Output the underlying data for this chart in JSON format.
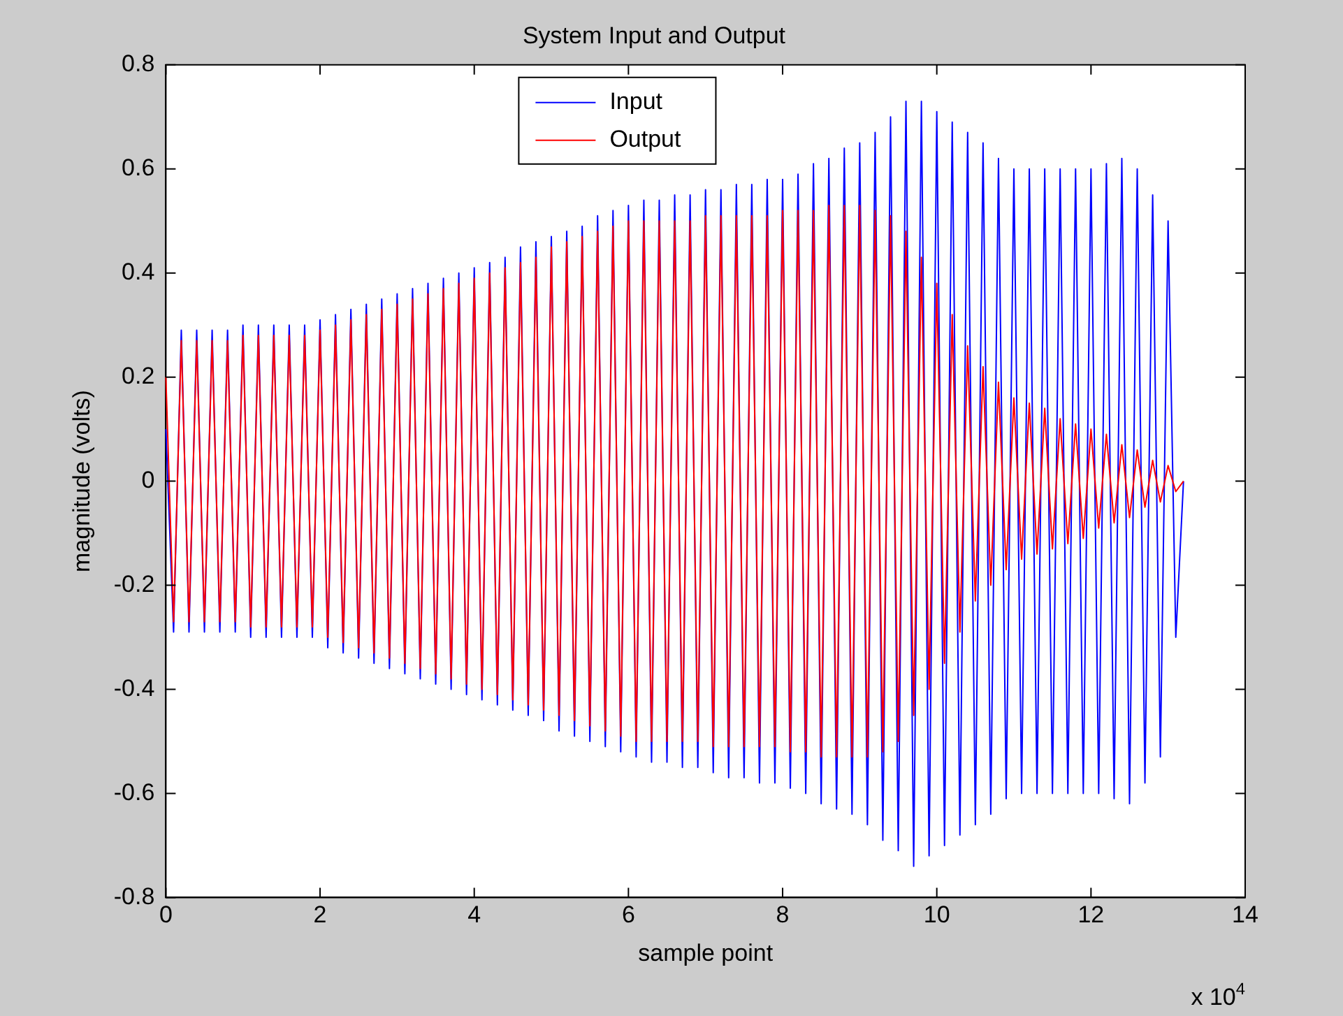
{
  "chart_data": {
    "type": "line",
    "title": "System Input and Output",
    "xlabel": "sample point",
    "ylabel": "magnitude (volts)",
    "annotations": [
      "x 10$^{4}$"
    ],
    "x": [
      0,
      0.1,
      0.2,
      0.3,
      0.4,
      0.5,
      0.6,
      0.7,
      0.8,
      0.9,
      1,
      1.1,
      1.2,
      1.3,
      1.4,
      1.5,
      1.6,
      1.7,
      1.8,
      1.9,
      2,
      2.1,
      2.2,
      2.3,
      2.4,
      2.5,
      2.6,
      2.7,
      2.8,
      2.9,
      3,
      3.1,
      3.2,
      3.3,
      3.4,
      3.5,
      3.6,
      3.7,
      3.8,
      3.9,
      4,
      4.1,
      4.2,
      4.3,
      4.4,
      4.5,
      4.6,
      4.7,
      4.8,
      4.9,
      5,
      5.1,
      5.2,
      5.3,
      5.4,
      5.5,
      5.6,
      5.7,
      5.8,
      5.9,
      6,
      6.1,
      6.2,
      6.3,
      6.4,
      6.5,
      6.6,
      6.7,
      6.8,
      6.9,
      7,
      7.1,
      7.2,
      7.3,
      7.4,
      7.5,
      7.6,
      7.7,
      7.8,
      7.9,
      8,
      8.1,
      8.2,
      8.3,
      8.4,
      8.5,
      8.6,
      8.7,
      8.8,
      8.9,
      9,
      9.1,
      9.2,
      9.3,
      9.4,
      9.5,
      9.6,
      9.7,
      9.8,
      9.9,
      10,
      10.1,
      10.2,
      10.3,
      10.4,
      10.5,
      10.6,
      10.7,
      10.8,
      10.9,
      11,
      11.1,
      11.2,
      11.3,
      11.4,
      11.5,
      11.6,
      11.7,
      11.8,
      11.9,
      12,
      12.1,
      12.2,
      12.3,
      12.4,
      12.5,
      12.6,
      12.7,
      12.8,
      12.9,
      13,
      13.1,
      13.2
    ],
    "series": [
      {
        "name": "Input",
        "color": "#0000ff",
        "values": [
          0.1,
          -0.29,
          0.29,
          -0.29,
          0.29,
          -0.29,
          0.29,
          -0.29,
          0.29,
          -0.29,
          0.3,
          -0.3,
          0.3,
          -0.3,
          0.3,
          -0.3,
          0.3,
          -0.3,
          0.3,
          -0.3,
          0.31,
          -0.32,
          0.32,
          -0.33,
          0.33,
          -0.34,
          0.34,
          -0.35,
          0.35,
          -0.36,
          0.36,
          -0.37,
          0.37,
          -0.38,
          0.38,
          -0.39,
          0.39,
          -0.4,
          0.4,
          -0.41,
          0.41,
          -0.42,
          0.42,
          -0.43,
          0.43,
          -0.44,
          0.45,
          -0.45,
          0.46,
          -0.46,
          0.47,
          -0.48,
          0.48,
          -0.49,
          0.49,
          -0.5,
          0.51,
          -0.51,
          0.52,
          -0.52,
          0.53,
          -0.53,
          0.54,
          -0.54,
          0.54,
          -0.54,
          0.55,
          -0.55,
          0.55,
          -0.55,
          0.56,
          -0.56,
          0.56,
          -0.57,
          0.57,
          -0.57,
          0.57,
          -0.58,
          0.58,
          -0.58,
          0.58,
          -0.59,
          0.59,
          -0.6,
          0.61,
          -0.62,
          0.62,
          -0.63,
          0.64,
          -0.64,
          0.65,
          -0.66,
          0.67,
          -0.69,
          0.7,
          -0.71,
          0.73,
          -0.74,
          0.73,
          -0.72,
          0.71,
          -0.7,
          0.69,
          -0.68,
          0.67,
          -0.66,
          0.65,
          -0.64,
          0.62,
          -0.61,
          0.6,
          -0.6,
          0.6,
          -0.6,
          0.6,
          -0.6,
          0.6,
          -0.6,
          0.6,
          -0.6,
          0.6,
          -0.6,
          0.61,
          -0.61,
          0.62,
          -0.62,
          0.6,
          -0.58,
          0.55,
          -0.53,
          0.5,
          -0.3,
          0
        ]
      },
      {
        "name": "Output",
        "color": "#ff0000",
        "values": [
          0.2,
          -0.27,
          0.27,
          -0.27,
          0.27,
          -0.27,
          0.27,
          -0.27,
          0.27,
          -0.27,
          0.28,
          -0.28,
          0.28,
          -0.28,
          0.28,
          -0.28,
          0.28,
          -0.28,
          0.28,
          -0.28,
          0.29,
          -0.3,
          0.3,
          -0.31,
          0.31,
          -0.32,
          0.32,
          -0.33,
          0.33,
          -0.34,
          0.34,
          -0.35,
          0.35,
          -0.36,
          0.36,
          -0.37,
          0.37,
          -0.38,
          0.38,
          -0.39,
          0.39,
          -0.4,
          0.4,
          -0.41,
          0.41,
          -0.42,
          0.42,
          -0.43,
          0.43,
          -0.44,
          0.45,
          -0.45,
          0.46,
          -0.46,
          0.47,
          -0.47,
          0.48,
          -0.48,
          0.49,
          -0.49,
          0.5,
          -0.5,
          0.5,
          -0.5,
          0.5,
          -0.5,
          0.5,
          -0.5,
          0.5,
          -0.5,
          0.51,
          -0.51,
          0.51,
          -0.51,
          0.51,
          -0.51,
          0.51,
          -0.51,
          0.51,
          -0.51,
          0.52,
          -0.52,
          0.52,
          -0.52,
          0.52,
          -0.53,
          0.53,
          -0.53,
          0.53,
          -0.53,
          0.53,
          -0.53,
          0.52,
          -0.52,
          0.51,
          -0.5,
          0.48,
          -0.45,
          0.43,
          -0.4,
          0.38,
          -0.35,
          0.32,
          -0.29,
          0.26,
          -0.23,
          0.22,
          -0.2,
          0.19,
          -0.17,
          0.16,
          -0.15,
          0.15,
          -0.14,
          0.14,
          -0.13,
          0.12,
          -0.12,
          0.11,
          -0.11,
          0.1,
          -0.09,
          0.09,
          -0.08,
          0.07,
          -0.07,
          0.06,
          -0.05,
          0.04,
          -0.04,
          0.03,
          -0.02,
          0
        ]
      }
    ],
    "xlim": [
      0,
      14
    ],
    "xticks": [
      0,
      2,
      4,
      6,
      8,
      10,
      12,
      14
    ],
    "ylim": [
      -0.8,
      0.8
    ],
    "yticks": [
      -0.8,
      -0.6,
      -0.4,
      -0.2,
      0,
      0.2,
      0.4,
      0.6,
      0.8
    ],
    "grid": false,
    "legend": "top",
    "marker": "none",
    "line_style": "solid"
  }
}
